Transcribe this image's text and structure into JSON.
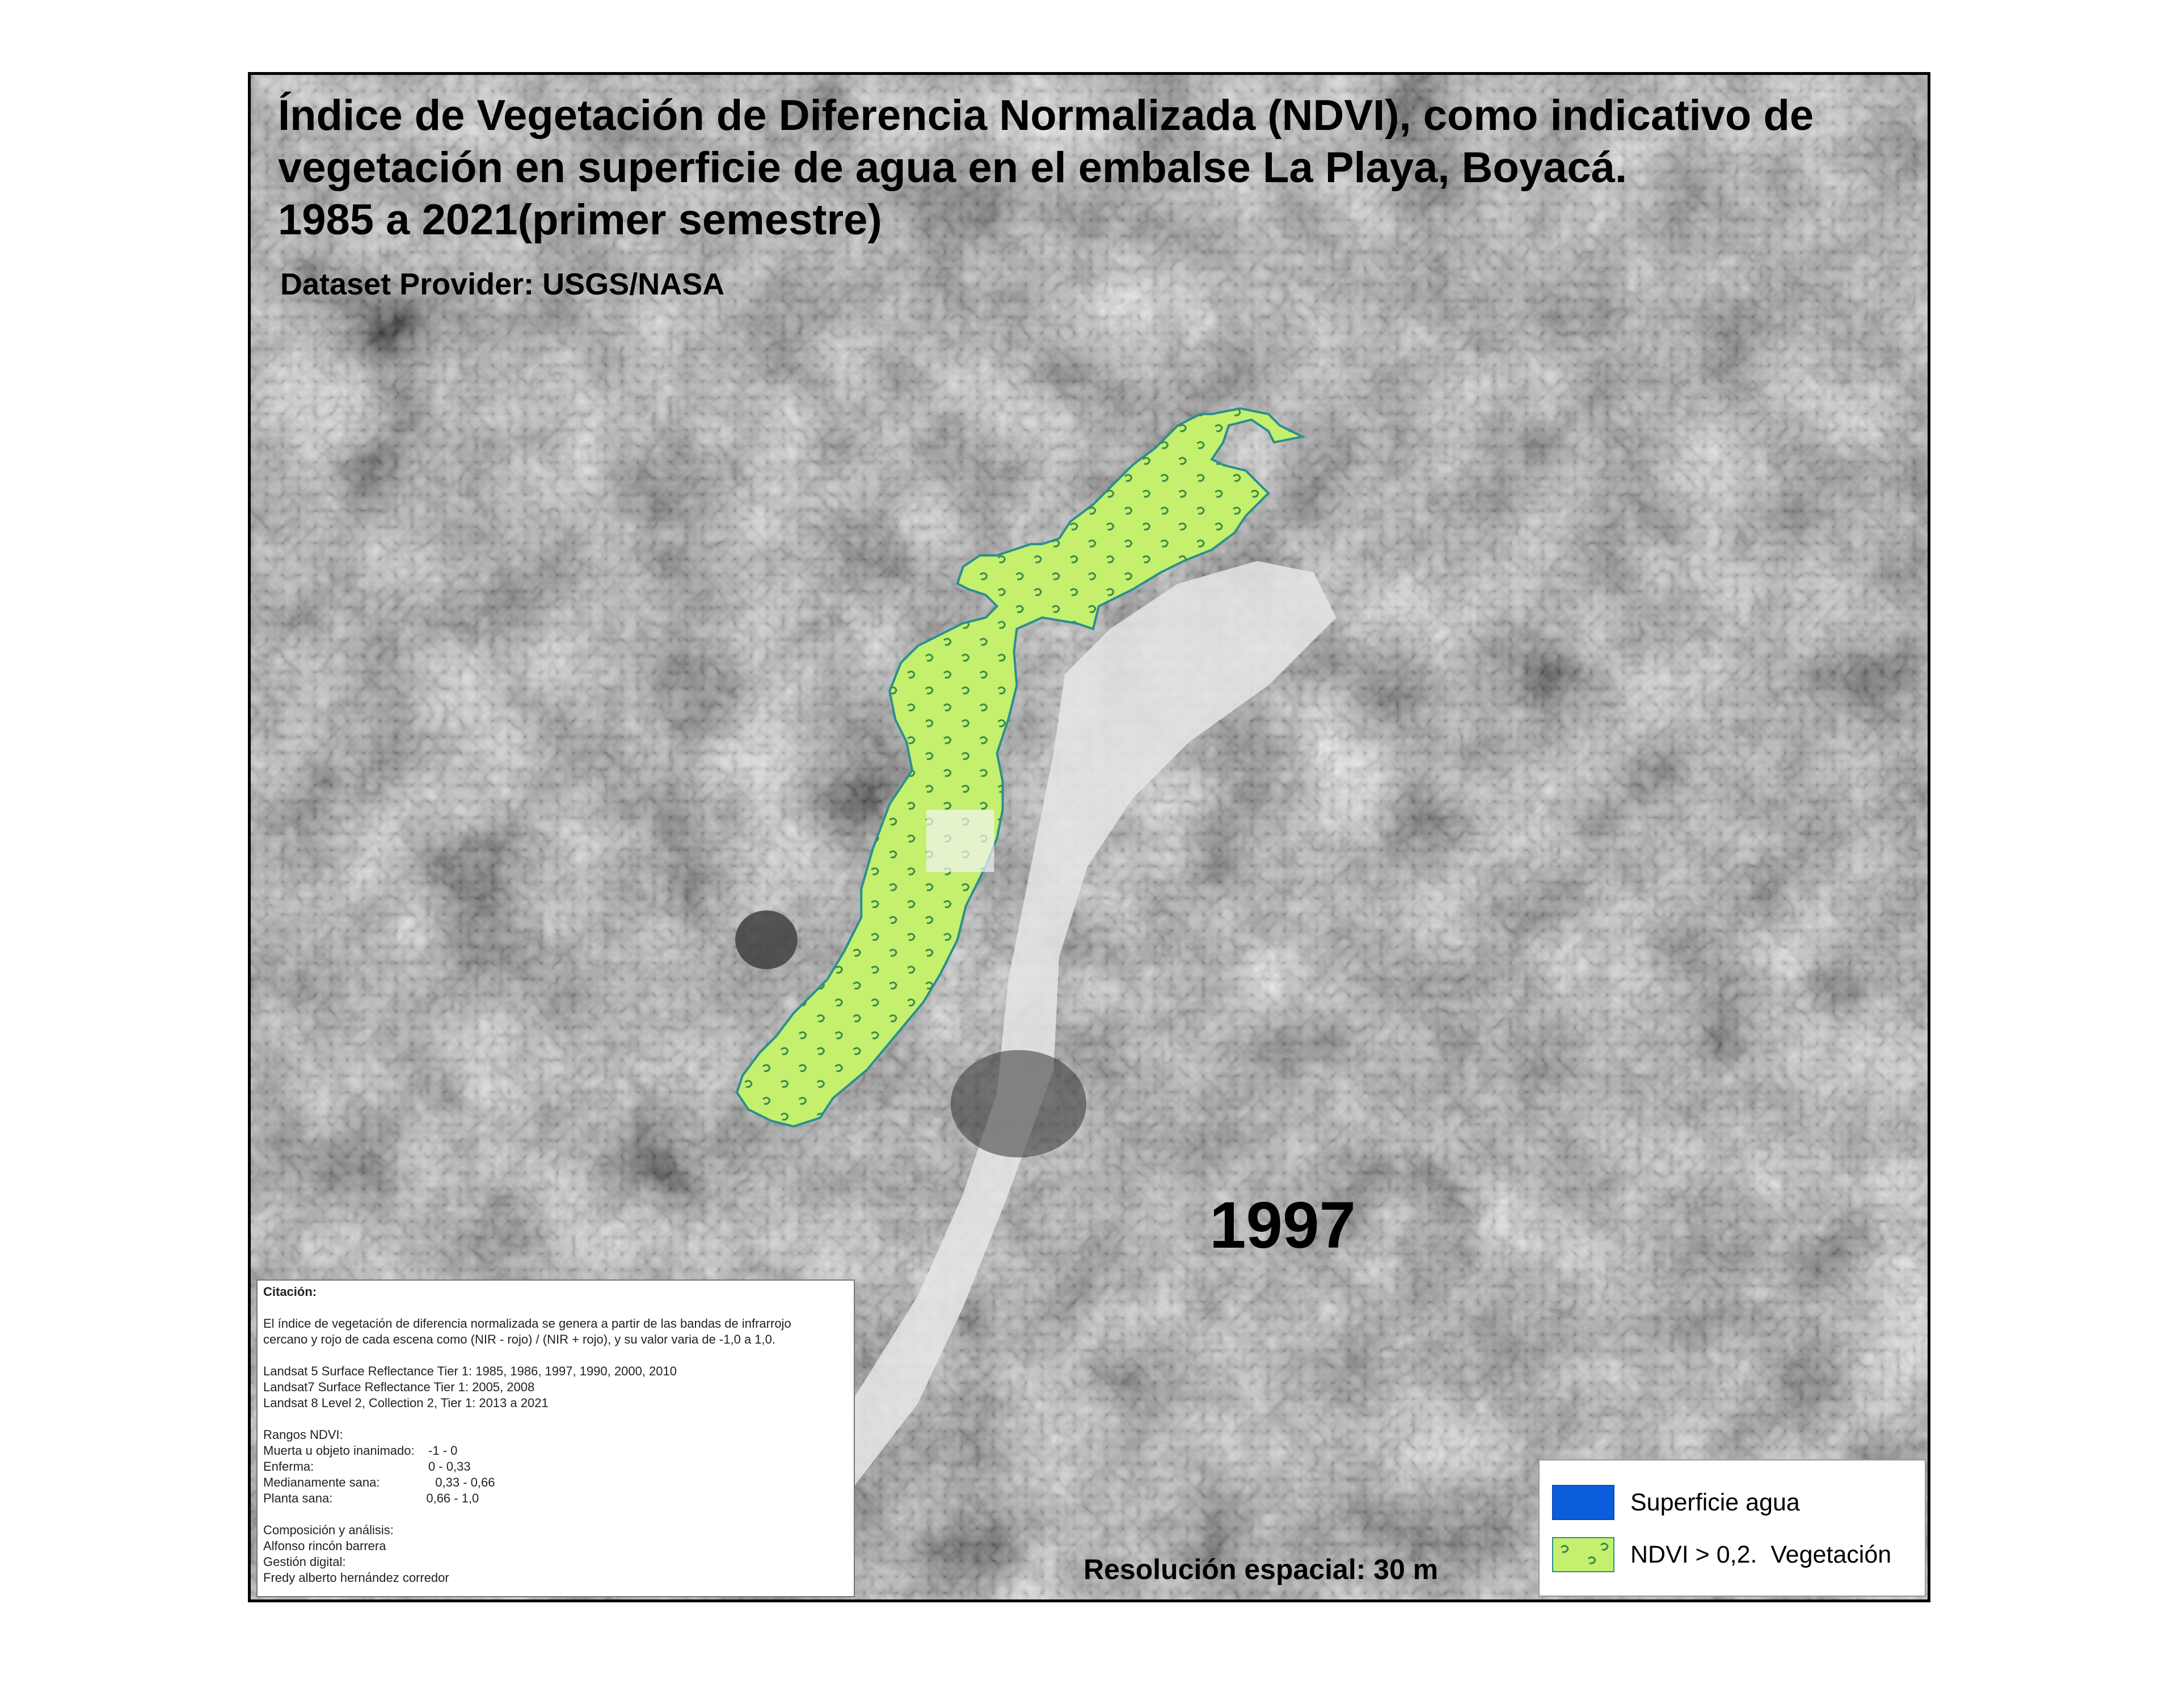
{
  "map": {
    "title": "Índice de Vegetación de Diferencia Normalizada (NDVI), como indicativo de\nvegetación en superficie de agua en el embalse La Playa, Boyacá.\n1985 a 2021(primer semestre)",
    "provider": "Dataset Provider: USGS/NASA",
    "year": "1997",
    "resolution": "Resolución espacial: 30 m",
    "basemap": "grayscale-satellite",
    "colors": {
      "water": "#0a5ddb",
      "vegetation_fill": "#c4f06e",
      "vegetation_outline": "#2a8f8f"
    }
  },
  "citation": {
    "lines": [
      "Citación:",
      "",
      "El índice de vegetación de diferencia normalizada se genera a partir de las bandas de infrarrojo",
      "cercano y rojo de cada escena como (NIR - rojo) / (NIR + rojo), y su valor varia de -1,0 a 1,0.",
      "",
      "Landsat 5 Surface Reflectance Tier 1: 1985, 1986, 1997, 1990, 2000, 2010",
      "Landsat7 Surface Reflectance Tier 1: 2005, 2008",
      "Landsat 8 Level 2, Collection 2, Tier 1: 2013 a 2021",
      "",
      "Rangos NDVI:",
      "Muerta u objeto inanimado:    -1 - 0",
      "Enferma:                                 0 - 0,33",
      "Medianamente sana:                0,33 - 0,66",
      "Planta sana:                           0,66 - 1,0",
      "",
      "Composición y análisis:",
      "Alfonso rincón barrera",
      "Gestión digital:",
      "Fredy alberto hernández corredor"
    ]
  },
  "legend": {
    "items": [
      {
        "label": "Superficie agua",
        "swatch": "water"
      },
      {
        "label": "NDVI > 0,2.  Vegetación",
        "swatch": "vegetation"
      }
    ]
  }
}
